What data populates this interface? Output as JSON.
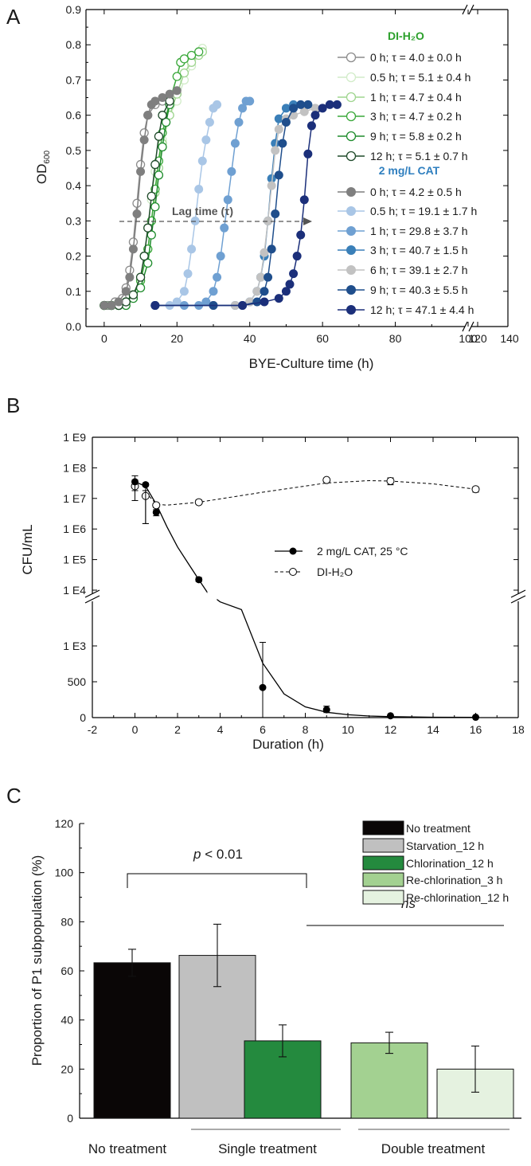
{
  "chart_data": [
    {
      "panel": "A",
      "type": "line",
      "xlabel": "BYE-Culture time (h)",
      "ylabel": "OD600",
      "ylabel_main": "OD",
      "ylabel_sub": "600",
      "xlim": [
        -5,
        140
      ],
      "ylim": [
        0,
        0.9
      ],
      "x_ticks": [
        "0",
        "20",
        "40",
        "60",
        "80",
        "100",
        "120",
        "140"
      ],
      "y_ticks": [
        "0.0",
        "0.1",
        "0.2",
        "0.3",
        "0.4",
        "0.5",
        "0.6",
        "0.7",
        "0.8",
        "0.9"
      ],
      "annotation": "Lag time (τ)",
      "legend": {
        "group1_title": "DI-H₂O",
        "group2_title": "2 mg/L CAT",
        "group1_color": "#2ca02c",
        "group2_color": "#2f7fbf"
      },
      "series": [
        {
          "name": "0 h; τ = 4.0 ± 0.0 h",
          "group": "DI-H2O",
          "filled": false,
          "color": "#8c8c8c",
          "x": [
            0,
            1,
            2,
            3,
            4,
            5,
            6,
            7,
            8,
            9,
            10,
            11,
            12,
            14,
            16,
            18,
            20
          ],
          "y": [
            0.06,
            0.06,
            0.06,
            0.07,
            0.07,
            0.08,
            0.11,
            0.16,
            0.24,
            0.35,
            0.46,
            0.55,
            0.6,
            0.63,
            0.64,
            0.65,
            0.66
          ]
        },
        {
          "name": "0.5 h; τ = 5.1 ± 0.4 h",
          "group": "DI-H2O",
          "filled": false,
          "color": "#d2ecc9",
          "x": [
            0,
            2,
            4,
            6,
            8,
            10,
            11,
            12,
            13,
            14,
            16,
            18,
            20,
            22,
            24,
            26,
            27
          ],
          "y": [
            0.06,
            0.06,
            0.06,
            0.07,
            0.09,
            0.14,
            0.2,
            0.28,
            0.36,
            0.44,
            0.53,
            0.6,
            0.64,
            0.7,
            0.74,
            0.77,
            0.79
          ]
        },
        {
          "name": "1 h; τ = 4.7 ± 0.4 h",
          "group": "DI-H2O",
          "filled": false,
          "color": "#9fd58f",
          "x": [
            0,
            2,
            4,
            6,
            8,
            10,
            12,
            13,
            14,
            15,
            16,
            18,
            20,
            22,
            24,
            26,
            27
          ],
          "y": [
            0.06,
            0.06,
            0.06,
            0.07,
            0.09,
            0.13,
            0.22,
            0.3,
            0.38,
            0.45,
            0.52,
            0.6,
            0.66,
            0.72,
            0.75,
            0.77,
            0.78
          ]
        },
        {
          "name": "3 h; τ = 4.7 ± 0.2 h",
          "group": "DI-H2O",
          "filled": false,
          "color": "#3aa83a",
          "x": [
            0,
            2,
            4,
            6,
            8,
            10,
            12,
            13,
            14,
            15,
            16,
            18,
            20,
            21,
            22,
            24,
            26
          ],
          "y": [
            0.06,
            0.06,
            0.06,
            0.07,
            0.09,
            0.13,
            0.22,
            0.3,
            0.39,
            0.47,
            0.55,
            0.64,
            0.71,
            0.75,
            0.76,
            0.77,
            0.78
          ]
        },
        {
          "name": "9 h; τ = 5.8 ± 0.2 h",
          "group": "DI-H2O",
          "filled": false,
          "color": "#1e8c2c",
          "x": [
            0,
            2,
            4,
            6,
            8,
            10,
            12,
            13,
            14,
            15,
            16,
            17,
            18
          ],
          "y": [
            0.06,
            0.06,
            0.06,
            0.06,
            0.08,
            0.11,
            0.18,
            0.26,
            0.34,
            0.43,
            0.51,
            0.58,
            0.63
          ]
        },
        {
          "name": "12 h; τ = 5.1 ± 0.7 h",
          "group": "DI-H2O",
          "filled": false,
          "color": "#1f4a2a",
          "x": [
            0,
            2,
            4,
            6,
            8,
            10,
            11,
            12,
            13,
            14,
            15,
            16,
            18
          ],
          "y": [
            0.06,
            0.06,
            0.06,
            0.07,
            0.09,
            0.14,
            0.2,
            0.28,
            0.37,
            0.46,
            0.54,
            0.6,
            0.64
          ]
        },
        {
          "name": "0 h; τ = 4.2 ± 0.5 h",
          "group": "CAT",
          "filled": true,
          "color": "#7f7f7f",
          "x": [
            0,
            2,
            4,
            6,
            7,
            8,
            9,
            10,
            11,
            12,
            13,
            14,
            16,
            18,
            20
          ],
          "y": [
            0.06,
            0.06,
            0.07,
            0.1,
            0.14,
            0.22,
            0.32,
            0.44,
            0.53,
            0.6,
            0.63,
            0.64,
            0.65,
            0.66,
            0.67
          ]
        },
        {
          "name": "0.5 h; τ = 19.1 ± 1.7 h",
          "group": "CAT",
          "filled": true,
          "color": "#a9c6e6",
          "x": [
            14,
            18,
            20,
            22,
            23,
            24,
            25,
            26,
            27,
            28,
            29,
            30,
            31
          ],
          "y": [
            0.06,
            0.06,
            0.07,
            0.1,
            0.15,
            0.22,
            0.3,
            0.39,
            0.47,
            0.53,
            0.58,
            0.62,
            0.63
          ]
        },
        {
          "name": "1 h; τ = 29.8 ± 3.7 h",
          "group": "CAT",
          "filled": true,
          "color": "#6fa0d2",
          "x": [
            14,
            22,
            26,
            28,
            30,
            31,
            32,
            33,
            34,
            35,
            36,
            37,
            38,
            39,
            40
          ],
          "y": [
            0.06,
            0.06,
            0.06,
            0.07,
            0.1,
            0.14,
            0.2,
            0.28,
            0.36,
            0.44,
            0.52,
            0.58,
            0.62,
            0.64,
            0.64
          ]
        },
        {
          "name": "3 h; τ = 40.7 ± 1.5 h",
          "group": "CAT",
          "filled": true,
          "color": "#3a7fb8",
          "x": [
            14,
            30,
            36,
            40,
            42,
            43,
            44,
            45,
            46,
            47,
            48,
            50,
            52
          ],
          "y": [
            0.06,
            0.06,
            0.06,
            0.07,
            0.1,
            0.14,
            0.2,
            0.3,
            0.42,
            0.52,
            0.59,
            0.62,
            0.63
          ]
        },
        {
          "name": "6 h; τ = 39.1 ± 2.7 h",
          "group": "CAT",
          "filled": true,
          "color": "#c2c2c2",
          "x": [
            14,
            30,
            36,
            40,
            42,
            43,
            44,
            45,
            46,
            47,
            48,
            50,
            52,
            55,
            58
          ],
          "y": [
            0.06,
            0.06,
            0.06,
            0.07,
            0.1,
            0.14,
            0.21,
            0.3,
            0.4,
            0.5,
            0.56,
            0.59,
            0.6,
            0.61,
            0.62
          ]
        },
        {
          "name": "9 h; τ = 40.3 ± 5.5 h",
          "group": "CAT",
          "filled": true,
          "color": "#1f4e8c",
          "x": [
            14,
            30,
            38,
            42,
            44,
            45,
            46,
            47,
            48,
            49,
            50,
            52,
            54,
            56
          ],
          "y": [
            0.06,
            0.06,
            0.06,
            0.07,
            0.1,
            0.14,
            0.22,
            0.32,
            0.43,
            0.52,
            0.58,
            0.62,
            0.63,
            0.63
          ]
        },
        {
          "name": "12 h; τ = 47.1 ± 4.4 h",
          "group": "CAT",
          "filled": true,
          "color": "#1b2f7a",
          "x": [
            14,
            38,
            44,
            48,
            50,
            51,
            52,
            53,
            54,
            55,
            56,
            57,
            58,
            60,
            62,
            64
          ],
          "y": [
            0.06,
            0.06,
            0.07,
            0.08,
            0.1,
            0.12,
            0.15,
            0.2,
            0.26,
            0.36,
            0.49,
            0.57,
            0.6,
            0.62,
            0.63,
            0.63
          ]
        }
      ]
    },
    {
      "panel": "B",
      "type": "line",
      "xlabel": "Duration (h)",
      "ylabel": "CFU/mL",
      "xlim": [
        -2,
        18
      ],
      "x_ticks": [
        "-2",
        "0",
        "2",
        "4",
        "6",
        "8",
        "10",
        "12",
        "14",
        "16",
        "18"
      ],
      "y_ticks_log": [
        "1 E4",
        "1 E5",
        "1 E6",
        "1 E7",
        "1 E8",
        "1 E9"
      ],
      "y_ticks_lin": [
        "0",
        "500",
        "1 E3"
      ],
      "y_scale": "broken: linear 0–1500 below, log 1e4–1e9 above",
      "series": [
        {
          "name": "2 mg/L CAT, 25 °C",
          "filled": true,
          "style": "solid",
          "x": [
            0,
            0.5,
            1,
            3,
            6,
            9,
            12,
            16
          ],
          "y": [
            35000000,
            28000000,
            3500000,
            22000,
            420,
            110,
            25,
            5
          ],
          "err_hi": [
            55000000,
            32000000,
            4300000,
            26000,
            1050,
            160,
            35,
            10
          ],
          "err_lo": [
            18000000,
            1500000,
            2700000,
            19000,
            0,
            70,
            15,
            2
          ]
        },
        {
          "name": "DI-H₂O",
          "filled": false,
          "style": "dashed",
          "x": [
            0,
            0.5,
            1,
            3,
            9,
            12,
            16
          ],
          "y": [
            25000000,
            12000000,
            6000000,
            7500000,
            40000000,
            37000000,
            20000000
          ],
          "err_hi": [
            40000000,
            18000000,
            7000000,
            9000000,
            45000000,
            47000000,
            24000000
          ],
          "err_lo": [
            8500000,
            1500000,
            5000000,
            6500000,
            35000000,
            28000000,
            16000000
          ]
        }
      ]
    },
    {
      "panel": "C",
      "type": "bar",
      "ylabel": "Proportion of P1 subpopulation (%)",
      "ylim": [
        0,
        120
      ],
      "y_ticks": [
        "0",
        "20",
        "40",
        "60",
        "80",
        "100",
        "120"
      ],
      "categories": [
        "No treatment",
        "Starvation_12 h",
        "Chlorination_12 h",
        "Re-chlorination_3 h",
        "Re-chlorination_12 h"
      ],
      "values": [
        63.3,
        66.3,
        31.5,
        30.7,
        20.0
      ],
      "errors": [
        5.5,
        12.7,
        6.5,
        4.3,
        9.4
      ],
      "colors": [
        "#0a0606",
        "#c0c0c0",
        "#248a3e",
        "#a3d191",
        "#e5f2e0"
      ],
      "group_labels": [
        "No treatment",
        "Single treatment",
        "Double treatment"
      ],
      "sig_text_italic": "p",
      "sig_text_rest": " < 0.01",
      "ns_text": "ns"
    }
  ]
}
